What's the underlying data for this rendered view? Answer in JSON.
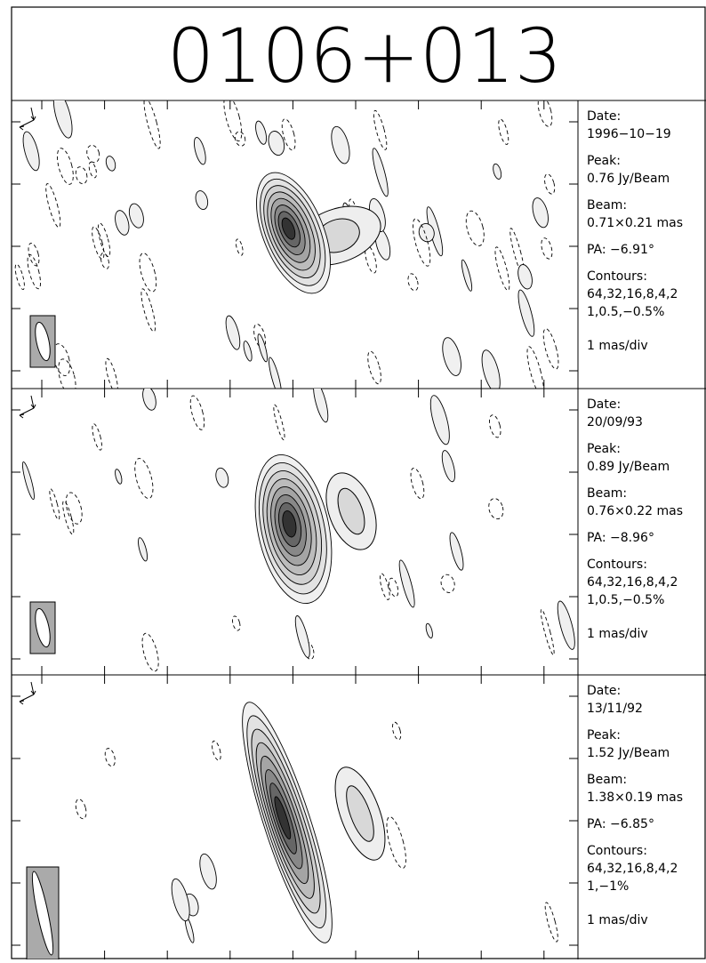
{
  "title": "0106+013",
  "panels": [
    {
      "date_label": "Date:",
      "date": "1996−10−19",
      "peak_label": "Peak:",
      "peak": "0.76 Jy/Beam",
      "beam_label": "Beam:",
      "beam": "0.71×0.21 mas",
      "pa": "PA: −6.91°",
      "contours_label": "Contours:",
      "contours_1": "64,32,16,8,4,2",
      "contours_2": "1,0.5,−0.5%",
      "scale": "1 mas/div"
    },
    {
      "date_label": "Date:",
      "date": "20/09/93",
      "peak_label": "Peak:",
      "peak": "0.89 Jy/Beam",
      "beam_label": "Beam:",
      "beam": "0.76×0.22 mas",
      "pa": "PA: −8.96°",
      "contours_label": "Contours:",
      "contours_1": "64,32,16,8,4,2",
      "contours_2": "1,0.5,−0.5%",
      "scale": "1 mas/div"
    },
    {
      "date_label": "Date:",
      "date": "13/11/92",
      "peak_label": "Peak:",
      "peak": "1.52 Jy/Beam",
      "beam_label": "Beam:",
      "beam": "1.38×0.19 mas",
      "pa": "PA: −6.85°",
      "contours_label": "Contours:",
      "contours_1": "64,32,16,8,4,2",
      "contours_2": "1,−1%",
      "scale": "1 mas/div"
    }
  ]
}
